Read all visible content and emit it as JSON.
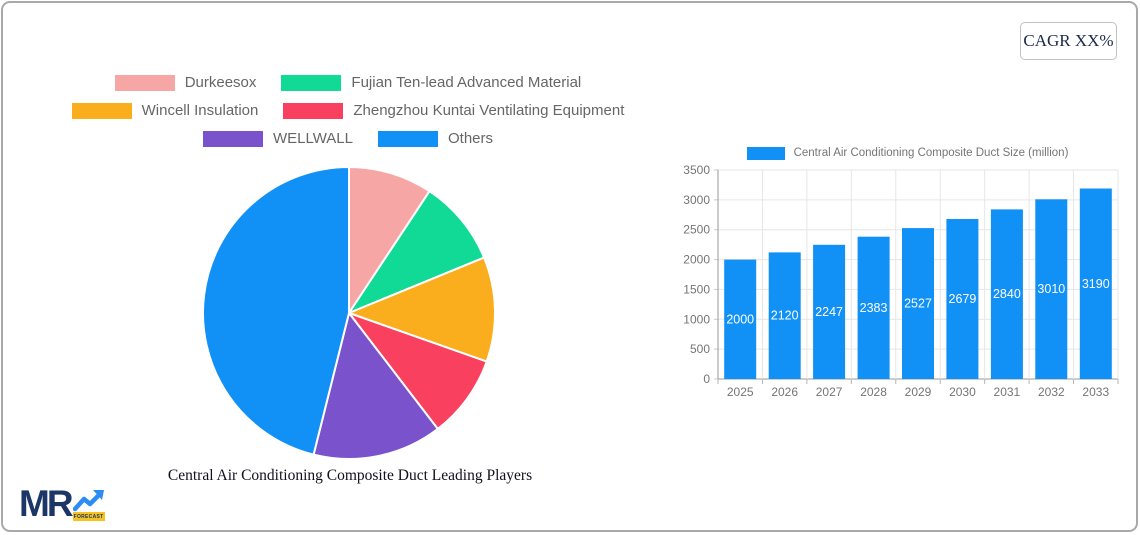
{
  "badge": {
    "label": "CAGR XX%"
  },
  "logo": {
    "mr": "MR",
    "forecast": "FORECAST"
  },
  "chart_data": [
    {
      "type": "pie",
      "title": "Central Air Conditioning Composite Duct Leading Players",
      "labels": [
        "Durkeesox",
        "Fujian Ten-lead Advanced Material",
        "Wincell Insulation",
        "Zhengzhou Kuntai Ventilating Equipment",
        "WELLWALL",
        "Others"
      ],
      "values": [
        9.3,
        9.5,
        11.6,
        9.2,
        14.3,
        46.1
      ],
      "colors": [
        "#f7a6a6",
        "#10da95",
        "#faad1d",
        "#f9405f",
        "#7a52cc",
        "#1190f5"
      ],
      "legend_position": "top",
      "start_angle_deg": -90,
      "direction": "clockwise",
      "slice_border_color": "#ffffff"
    },
    {
      "type": "bar",
      "legend": "Central Air Conditioning Composite Duct Size (million)",
      "categories": [
        "2025",
        "2026",
        "2027",
        "2028",
        "2029",
        "2030",
        "2031",
        "2032",
        "2033"
      ],
      "values": [
        2000,
        2120,
        2247,
        2383,
        2527,
        2679,
        2840,
        3010,
        3190
      ],
      "bar_color": "#1190f5",
      "value_label_color": "#ffffff",
      "ylim": [
        0,
        3500
      ],
      "ytick_step": 500,
      "grid": true,
      "axis_color": "#999999",
      "grid_color": "#e6e6e6",
      "tick_label_color": "#757575"
    }
  ]
}
